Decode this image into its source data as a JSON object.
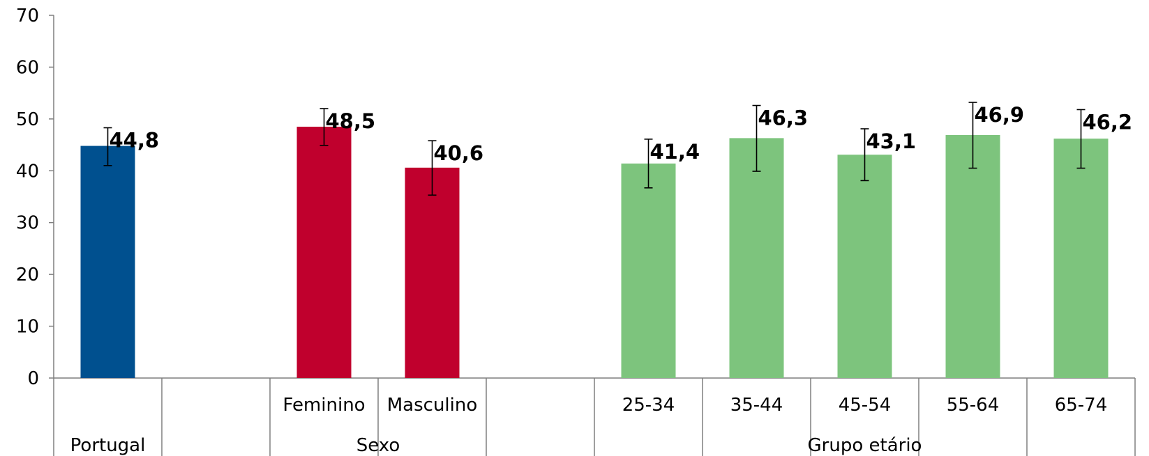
{
  "chart_data": {
    "type": "bar",
    "title": "",
    "xlabel": "",
    "ylabel": "",
    "ylim": [
      0,
      70
    ],
    "yticks": [
      "0",
      "10",
      "20",
      "30",
      "40",
      "50",
      "60",
      "70"
    ],
    "grid": false,
    "legend": "none",
    "value_labels_bold": true,
    "groups": [
      {
        "label": "Portugal",
        "color": "#00508f",
        "bars": [
          {
            "category": "",
            "value": 44.8,
            "label": "44,8",
            "err_low": 41.0,
            "err_high": 48.3
          }
        ]
      },
      {
        "label": "Sexo",
        "color": "#c0002d",
        "bars": [
          {
            "category": "Feminino",
            "value": 48.5,
            "label": "48,5",
            "err_low": 44.9,
            "err_high": 52.0
          },
          {
            "category": "Masculino",
            "value": 40.6,
            "label": "40,6",
            "err_low": 35.3,
            "err_high": 45.8
          }
        ]
      },
      {
        "label": "Grupo etário",
        "color": "#7dc47d",
        "bars": [
          {
            "category": "25-34",
            "value": 41.4,
            "label": "41,4",
            "err_low": 36.7,
            "err_high": 46.1
          },
          {
            "category": "35-44",
            "value": 46.3,
            "label": "46,3",
            "err_low": 39.9,
            "err_high": 52.6
          },
          {
            "category": "45-54",
            "value": 43.1,
            "label": "43,1",
            "err_low": 38.1,
            "err_high": 48.1
          },
          {
            "category": "55-64",
            "value": 46.9,
            "label": "46,9",
            "err_low": 40.5,
            "err_high": 53.2
          },
          {
            "category": "65-74",
            "value": 46.2,
            "label": "46,2",
            "err_low": 40.5,
            "err_high": 51.8
          }
        ]
      }
    ]
  }
}
